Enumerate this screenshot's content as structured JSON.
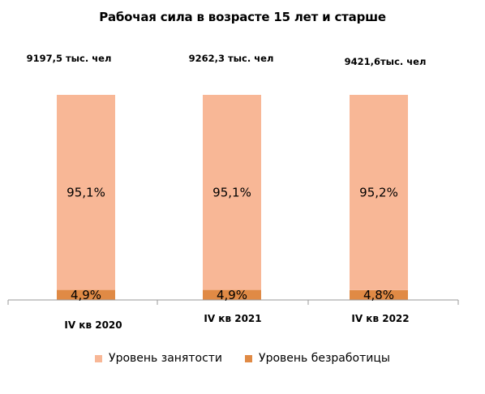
{
  "chart_data": {
    "type": "bar",
    "stacked": true,
    "title": "Рабочая сила в возрасте 15 лет и старше",
    "categories": [
      "IV кв 2020",
      "IV кв 2021",
      "IV кв 2022"
    ],
    "totals": [
      "9197,5 тыс. чел",
      "9262,3 тыс. чел",
      "9421,6тыс. чел"
    ],
    "series": [
      {
        "name": "Уровень безработицы",
        "values": [
          4.9,
          4.9,
          4.8
        ],
        "labels": [
          "4,9%",
          "4,9%",
          "4,8%"
        ],
        "color": "#E08A45"
      },
      {
        "name": "Уровень занятости",
        "values": [
          95.1,
          95.1,
          95.2
        ],
        "labels": [
          "95,1%",
          "95,1%",
          "95,2%"
        ],
        "color": "#F8B796"
      }
    ],
    "ylim": [
      0,
      100
    ],
    "grid": false,
    "legend_position": "bottom"
  }
}
